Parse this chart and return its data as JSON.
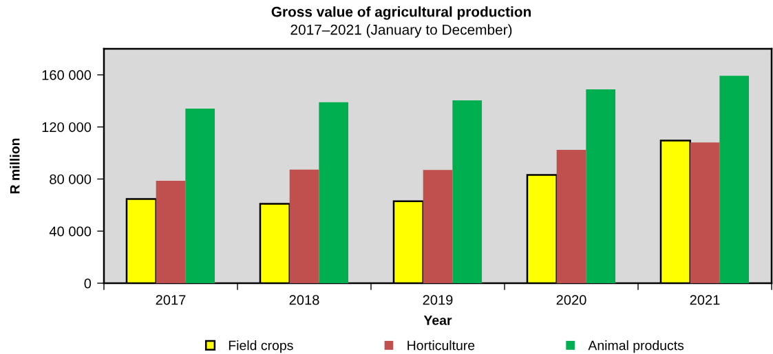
{
  "chart_data": {
    "type": "bar",
    "title": "Gross value of agricultural production",
    "subtitle": "2017–2021 (January to December)",
    "xlabel": "Year",
    "ylabel": "R million",
    "categories": [
      "2017",
      "2018",
      "2019",
      "2020",
      "2021"
    ],
    "series": [
      {
        "name": "Field crops",
        "color": "#ffff00",
        "values": [
          64600,
          61000,
          63000,
          83100,
          109500
        ]
      },
      {
        "name": "Horticulture",
        "color": "#c0504d",
        "values": [
          78700,
          87200,
          87000,
          102400,
          108100
        ]
      },
      {
        "name": "Animal products",
        "color": "#00b050",
        "values": [
          134100,
          138900,
          140400,
          148900,
          159300
        ]
      }
    ],
    "ylim": [
      0,
      180000
    ],
    "yticks": [
      0,
      {
        "value": 40000,
        "label": "40 000"
      },
      {
        "value": 80000,
        "label": "80 000"
      },
      {
        "value": 120000,
        "label": "120 000"
      },
      {
        "value": 160000,
        "label": "160 000"
      }
    ],
    "legend": "bottom"
  }
}
